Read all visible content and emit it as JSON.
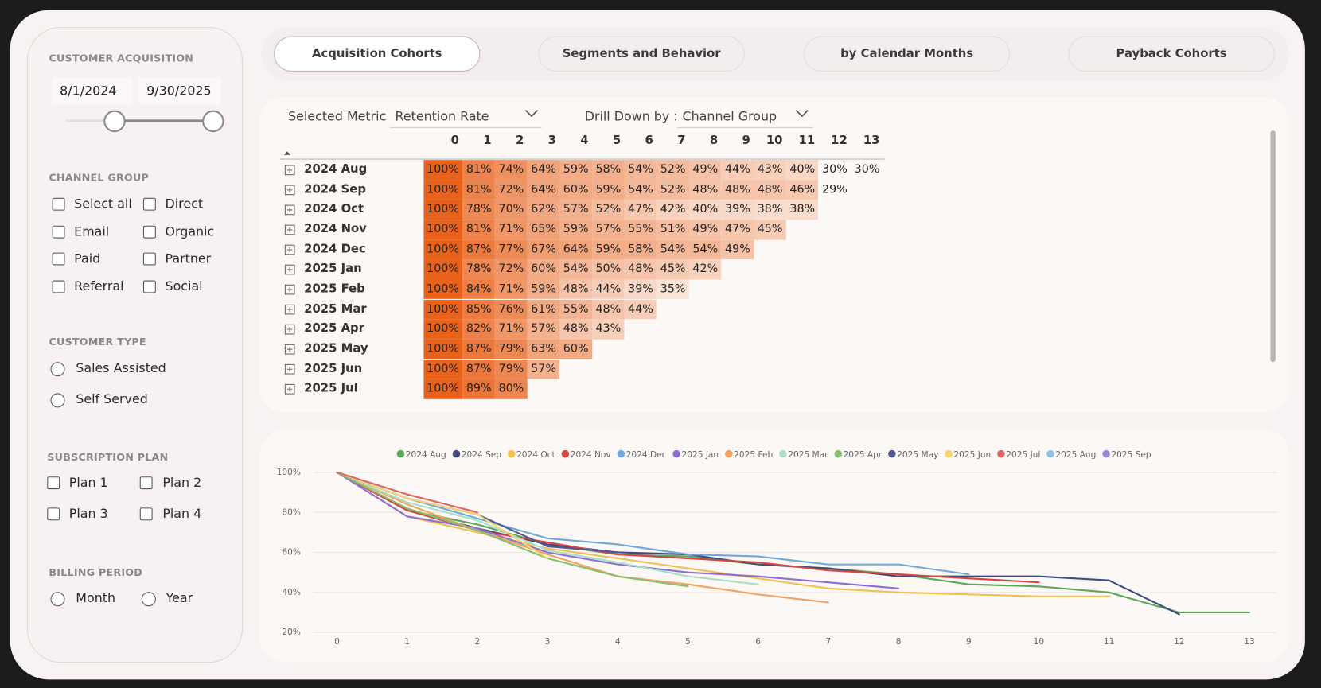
{
  "sidebar": {
    "acquisition": {
      "title": "CUSTOMER ACQUISITION",
      "start": "8/1/2024",
      "end": "9/30/2025"
    },
    "channel_group": {
      "title": "CHANNEL GROUP",
      "options": [
        "Select all",
        "Direct",
        "Email",
        "Organic",
        "Paid",
        "Partner",
        "Referral",
        "Social"
      ]
    },
    "customer_type": {
      "title": "CUSTOMER TYPE",
      "options": [
        "Sales Assisted",
        "Self Served"
      ]
    },
    "subscription_plan": {
      "title": "SUBSCRIPTION PLAN",
      "options": [
        "Plan 1",
        "Plan 2",
        "Plan 3",
        "Plan 4"
      ]
    },
    "billing_period": {
      "title": "BILLING PERIOD",
      "options": [
        "Month",
        "Year"
      ]
    }
  },
  "tabs": [
    "Acquisition Cohorts",
    "Segments and Behavior",
    "by Calendar Months",
    "Payback Cohorts"
  ],
  "matrix": {
    "metric_label": "Selected Metric :",
    "metric": "Retention Rate",
    "drill_label": "Drill Down by :",
    "drill": "Channel Group",
    "columns": [
      0,
      1,
      2,
      3,
      4,
      5,
      6,
      7,
      8,
      9,
      10,
      11,
      12,
      13
    ],
    "rows": [
      {
        "label": "2024 Aug",
        "cells": [
          "100%",
          "81%",
          "74%",
          "64%",
          "59%",
          "58%",
          "54%",
          "52%",
          "49%",
          "44%",
          "43%",
          "40%",
          "30%",
          "30%"
        ]
      },
      {
        "label": "2024 Sep",
        "cells": [
          "100%",
          "81%",
          "72%",
          "64%",
          "60%",
          "59%",
          "54%",
          "52%",
          "48%",
          "48%",
          "48%",
          "46%",
          "29%"
        ]
      },
      {
        "label": "2024 Oct",
        "cells": [
          "100%",
          "78%",
          "70%",
          "62%",
          "57%",
          "52%",
          "47%",
          "42%",
          "40%",
          "39%",
          "38%",
          "38%"
        ]
      },
      {
        "label": "2024 Nov",
        "cells": [
          "100%",
          "81%",
          "71%",
          "65%",
          "59%",
          "57%",
          "55%",
          "51%",
          "49%",
          "47%",
          "45%"
        ]
      },
      {
        "label": "2024 Dec",
        "cells": [
          "100%",
          "87%",
          "77%",
          "67%",
          "64%",
          "59%",
          "58%",
          "54%",
          "54%",
          "49%"
        ]
      },
      {
        "label": "2025 Jan",
        "cells": [
          "100%",
          "78%",
          "72%",
          "60%",
          "54%",
          "50%",
          "48%",
          "45%",
          "42%"
        ]
      },
      {
        "label": "2025 Feb",
        "cells": [
          "100%",
          "84%",
          "71%",
          "59%",
          "48%",
          "44%",
          "39%",
          "35%"
        ]
      },
      {
        "label": "2025 Mar",
        "cells": [
          "100%",
          "85%",
          "76%",
          "61%",
          "55%",
          "48%",
          "44%"
        ]
      },
      {
        "label": "2025 Apr",
        "cells": [
          "100%",
          "82%",
          "71%",
          "57%",
          "48%",
          "43%"
        ]
      },
      {
        "label": "2025 May",
        "cells": [
          "100%",
          "87%",
          "79%",
          "63%",
          "60%"
        ]
      },
      {
        "label": "2025 Jun",
        "cells": [
          "100%",
          "87%",
          "79%",
          "57%"
        ]
      },
      {
        "label": "2025 Jul",
        "cells": [
          "100%",
          "89%",
          "80%"
        ]
      }
    ]
  },
  "chart_data": {
    "type": "line",
    "x": [
      0,
      1,
      2,
      3,
      4,
      5,
      6,
      7,
      8,
      9,
      10,
      11,
      12,
      13
    ],
    "series": [
      {
        "name": "2024 Aug",
        "color": "#5fa55a",
        "values": [
          100,
          81,
          74,
          64,
          59,
          58,
          54,
          52,
          49,
          44,
          43,
          40,
          30,
          30
        ]
      },
      {
        "name": "2024 Sep",
        "color": "#3f4a80",
        "values": [
          100,
          81,
          72,
          64,
          60,
          59,
          54,
          52,
          48,
          48,
          48,
          46,
          29,
          null
        ]
      },
      {
        "name": "2024 Oct",
        "color": "#f2c14e",
        "values": [
          100,
          78,
          70,
          62,
          57,
          52,
          47,
          42,
          40,
          39,
          38,
          38,
          null,
          null
        ]
      },
      {
        "name": "2024 Nov",
        "color": "#d64541",
        "values": [
          100,
          81,
          71,
          65,
          59,
          57,
          55,
          51,
          49,
          47,
          45,
          null,
          null,
          null
        ]
      },
      {
        "name": "2024 Dec",
        "color": "#6fa8dc",
        "values": [
          100,
          87,
          77,
          67,
          64,
          59,
          58,
          54,
          54,
          49,
          null,
          null,
          null,
          null
        ]
      },
      {
        "name": "2025 Jan",
        "color": "#8e6fd0",
        "values": [
          100,
          78,
          72,
          60,
          54,
          50,
          48,
          45,
          42,
          null,
          null,
          null,
          null,
          null
        ]
      },
      {
        "name": "2025 Feb",
        "color": "#f4a261",
        "values": [
          100,
          84,
          71,
          59,
          48,
          44,
          39,
          35,
          null,
          null,
          null,
          null,
          null,
          null
        ]
      },
      {
        "name": "2025 Mar",
        "color": "#a8dfc6",
        "values": [
          100,
          85,
          76,
          61,
          55,
          48,
          44,
          null,
          null,
          null,
          null,
          null,
          null,
          null
        ]
      },
      {
        "name": "2025 Apr",
        "color": "#86c06e",
        "values": [
          100,
          82,
          71,
          57,
          48,
          43,
          null,
          null,
          null,
          null,
          null,
          null,
          null,
          null
        ]
      },
      {
        "name": "2025 May",
        "color": "#525a8e",
        "values": [
          100,
          87,
          79,
          63,
          60,
          null,
          null,
          null,
          null,
          null,
          null,
          null,
          null,
          null
        ]
      },
      {
        "name": "2025 Jun",
        "color": "#f5d76e",
        "values": [
          100,
          87,
          79,
          57,
          null,
          null,
          null,
          null,
          null,
          null,
          null,
          null,
          null,
          null
        ]
      },
      {
        "name": "2025 Jul",
        "color": "#e06666",
        "values": [
          100,
          89,
          80,
          null,
          null,
          null,
          null,
          null,
          null,
          null,
          null,
          null,
          null,
          null
        ]
      },
      {
        "name": "2025 Aug",
        "color": "#8fc1e8",
        "values": [
          100,
          null,
          null,
          null,
          null,
          null,
          null,
          null,
          null,
          null,
          null,
          null,
          null,
          null
        ]
      },
      {
        "name": "2025 Sep",
        "color": "#9b88d6",
        "values": [
          100,
          null,
          null,
          null,
          null,
          null,
          null,
          null,
          null,
          null,
          null,
          null,
          null,
          null
        ]
      }
    ],
    "xlim": [
      0,
      13
    ],
    "ylim": [
      20,
      100
    ],
    "xticks": [
      0,
      1,
      2,
      3,
      4,
      5,
      6,
      7,
      8,
      9,
      10,
      11,
      12,
      13
    ],
    "yticks": [
      {
        "value": 20,
        "label": "20%"
      },
      {
        "value": 40,
        "label": "40%"
      },
      {
        "value": 60,
        "label": "60%"
      },
      {
        "value": 80,
        "label": "80%"
      },
      {
        "value": 100,
        "label": "100%"
      }
    ],
    "grid": true
  }
}
